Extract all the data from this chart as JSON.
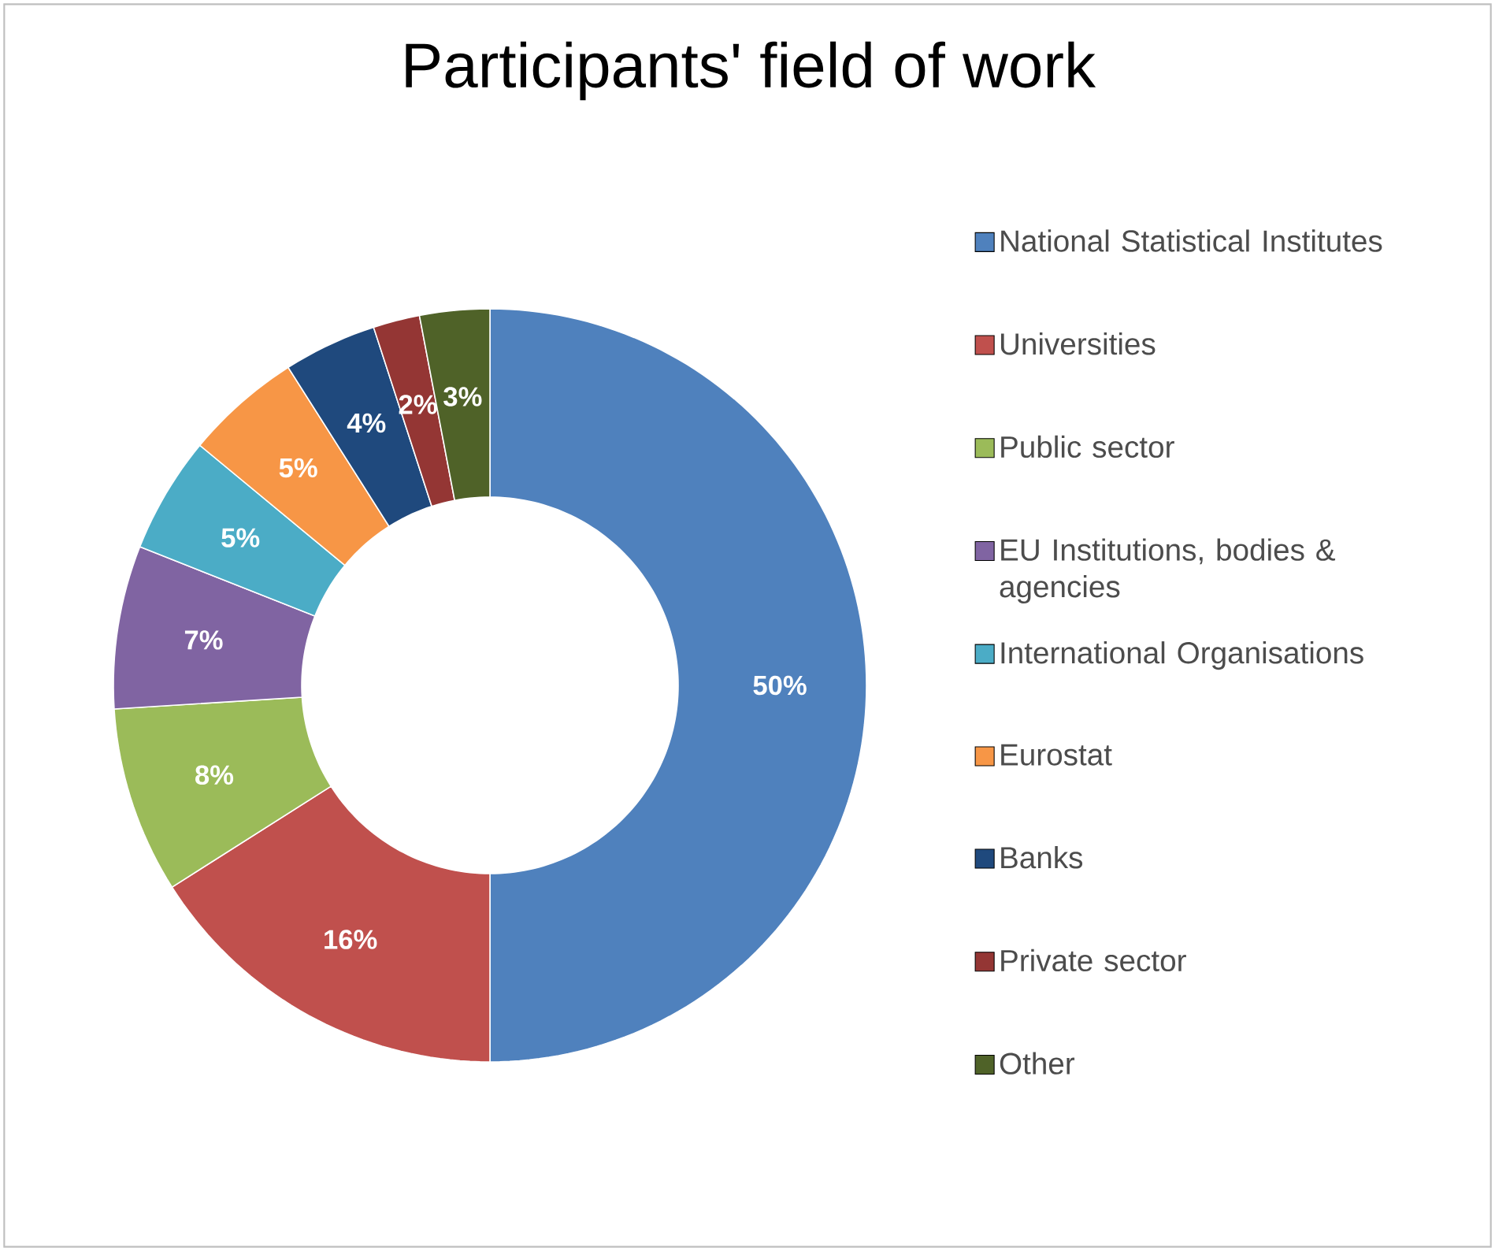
{
  "chart_data": {
    "type": "donut",
    "title": "Participants' field of work",
    "categories": [
      "National Statistical Institutes",
      "Universities",
      "Public sector",
      "EU Institutions, bodies & agencies",
      "International Organisations",
      "Eurostat",
      "Banks",
      "Private sector",
      "Other"
    ],
    "values": [
      50,
      16,
      8,
      7,
      5,
      5,
      4,
      2,
      3
    ],
    "value_labels": [
      "50%",
      "16%",
      "8%",
      "7%",
      "5%",
      "5%",
      "4%",
      "2%",
      "3%"
    ],
    "colors": [
      "#4f81bd",
      "#c0504d",
      "#9bbb59",
      "#8064a2",
      "#4bacc6",
      "#f79646",
      "#1f497d",
      "#943634",
      "#4f6228"
    ],
    "legend": "right"
  }
}
